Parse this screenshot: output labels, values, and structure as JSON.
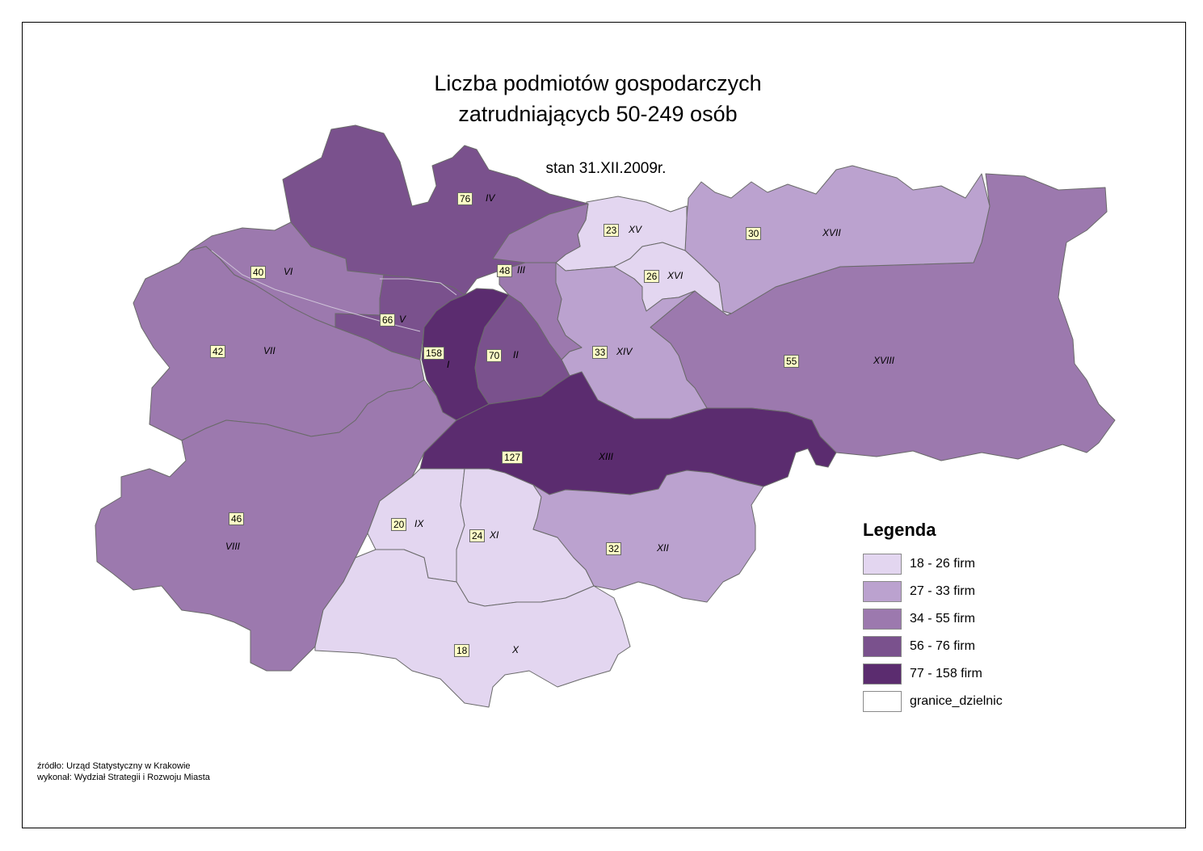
{
  "title_line1": "Liczba podmiotów gospodarczych",
  "title_line2": "zatrudniającycb 50-249 osób",
  "subtitle": "stan 31.XII.2009r.",
  "legend": {
    "title": "Legenda",
    "items": [
      {
        "label": "18 - 26 firm",
        "color": "#e3d6f0"
      },
      {
        "label": "27 - 33 firm",
        "color": "#bba2cf"
      },
      {
        "label": "34 - 55 firm",
        "color": "#9c79ae"
      },
      {
        "label": "56 - 76 firm",
        "color": "#7a518d"
      },
      {
        "label": "77 - 158 firm",
        "color": "#5b2c6f"
      },
      {
        "label": "granice_dzielnic",
        "color": "#ffffff"
      }
    ]
  },
  "source": {
    "line1": "źródło: Urząd Statystyczny w Krakowie",
    "line2": "wykonał: Wydział Strategii i Rozwoju Miasta"
  },
  "districts": [
    {
      "id": "I",
      "value": 158
    },
    {
      "id": "II",
      "value": 70
    },
    {
      "id": "III",
      "value": 48
    },
    {
      "id": "IV",
      "value": 76
    },
    {
      "id": "V",
      "value": 66
    },
    {
      "id": "VI",
      "value": 40
    },
    {
      "id": "VII",
      "value": 42
    },
    {
      "id": "VIII",
      "value": 46
    },
    {
      "id": "IX",
      "value": 20
    },
    {
      "id": "X",
      "value": 18
    },
    {
      "id": "XI",
      "value": 24
    },
    {
      "id": "XII",
      "value": 32
    },
    {
      "id": "XIII",
      "value": 127
    },
    {
      "id": "XIV",
      "value": 33
    },
    {
      "id": "XV",
      "value": 23
    },
    {
      "id": "XVI",
      "value": 26
    },
    {
      "id": "XVII",
      "value": 30
    },
    {
      "id": "XVIII",
      "value": 55
    }
  ]
}
